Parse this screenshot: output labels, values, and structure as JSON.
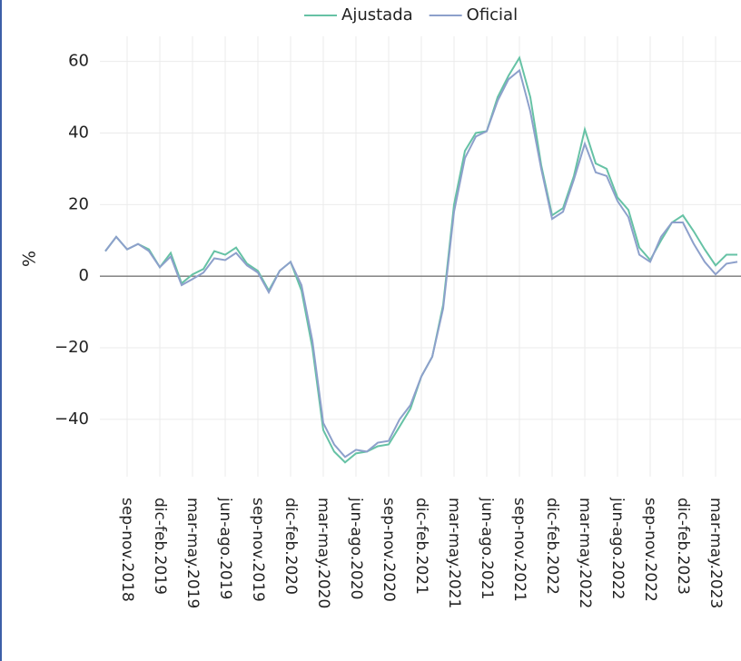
{
  "chart_data": {
    "type": "line",
    "categories": [
      null,
      null,
      "sep-nov.2018",
      null,
      null,
      "dic-feb.2019",
      null,
      null,
      "mar-may.2019",
      null,
      null,
      "jun-ago.2019",
      null,
      null,
      "sep-nov.2019",
      null,
      null,
      "dic-feb.2020",
      null,
      null,
      "mar-may.2020",
      null,
      null,
      "jun-ago.2020",
      null,
      null,
      "sep-nov.2020",
      null,
      null,
      "dic-feb.2021",
      null,
      null,
      "mar-may.2021",
      null,
      null,
      "jun-ago.2021",
      null,
      null,
      "sep-nov.2021",
      null,
      null,
      "dic-feb.2022",
      null,
      null,
      "mar-may.2022",
      null,
      null,
      "jun-ago.2022",
      null,
      null,
      "sep-nov.2022",
      null,
      null,
      "dic-feb.2023",
      null,
      null,
      "mar-may.2023",
      null,
      null
    ],
    "series": [
      {
        "name": "Ajustada",
        "color": "#66c2a5",
        "values": [
          7,
          11,
          7.5,
          9,
          7.5,
          2.5,
          6.5,
          -2,
          0.5,
          2,
          7,
          6,
          8,
          3.5,
          1.5,
          -4,
          1.5,
          4,
          -4,
          -20,
          -43,
          -49,
          -52,
          -49.5,
          -49,
          -47.5,
          -47,
          -42,
          -37,
          -28,
          -22.5,
          -8,
          20,
          35,
          40,
          40.5,
          50,
          56,
          61,
          50,
          31,
          17,
          19,
          28,
          41,
          31.5,
          30,
          22,
          18.5,
          8,
          4.5,
          10,
          15,
          17,
          12.5,
          7.5,
          3,
          6,
          6
        ]
      },
      {
        "name": "Oficial",
        "color": "#8da0cb",
        "values": [
          7,
          11,
          7.5,
          9,
          7,
          2.5,
          5.5,
          -2.5,
          -0.8,
          1,
          5,
          4.5,
          6.5,
          3,
          1,
          -4.5,
          1.5,
          4,
          -2.5,
          -18,
          -41,
          -47,
          -50.5,
          -48.5,
          -49,
          -46.5,
          -46,
          -40,
          -36,
          -28,
          -22.5,
          -9,
          18,
          33,
          39,
          40.5,
          49,
          55,
          57.5,
          46,
          30,
          16,
          18,
          27,
          37,
          29,
          28,
          21,
          16.5,
          6,
          4,
          11,
          15,
          15,
          9,
          4,
          0.5,
          3.5,
          4
        ]
      }
    ],
    "y_label": "%",
    "ylim": [
      -56,
      67
    ],
    "yticks": [
      {
        "value": -40,
        "label": "−40"
      },
      {
        "value": -20,
        "label": "−20"
      },
      0,
      20,
      40,
      60
    ],
    "grid": true,
    "legend": "top"
  }
}
